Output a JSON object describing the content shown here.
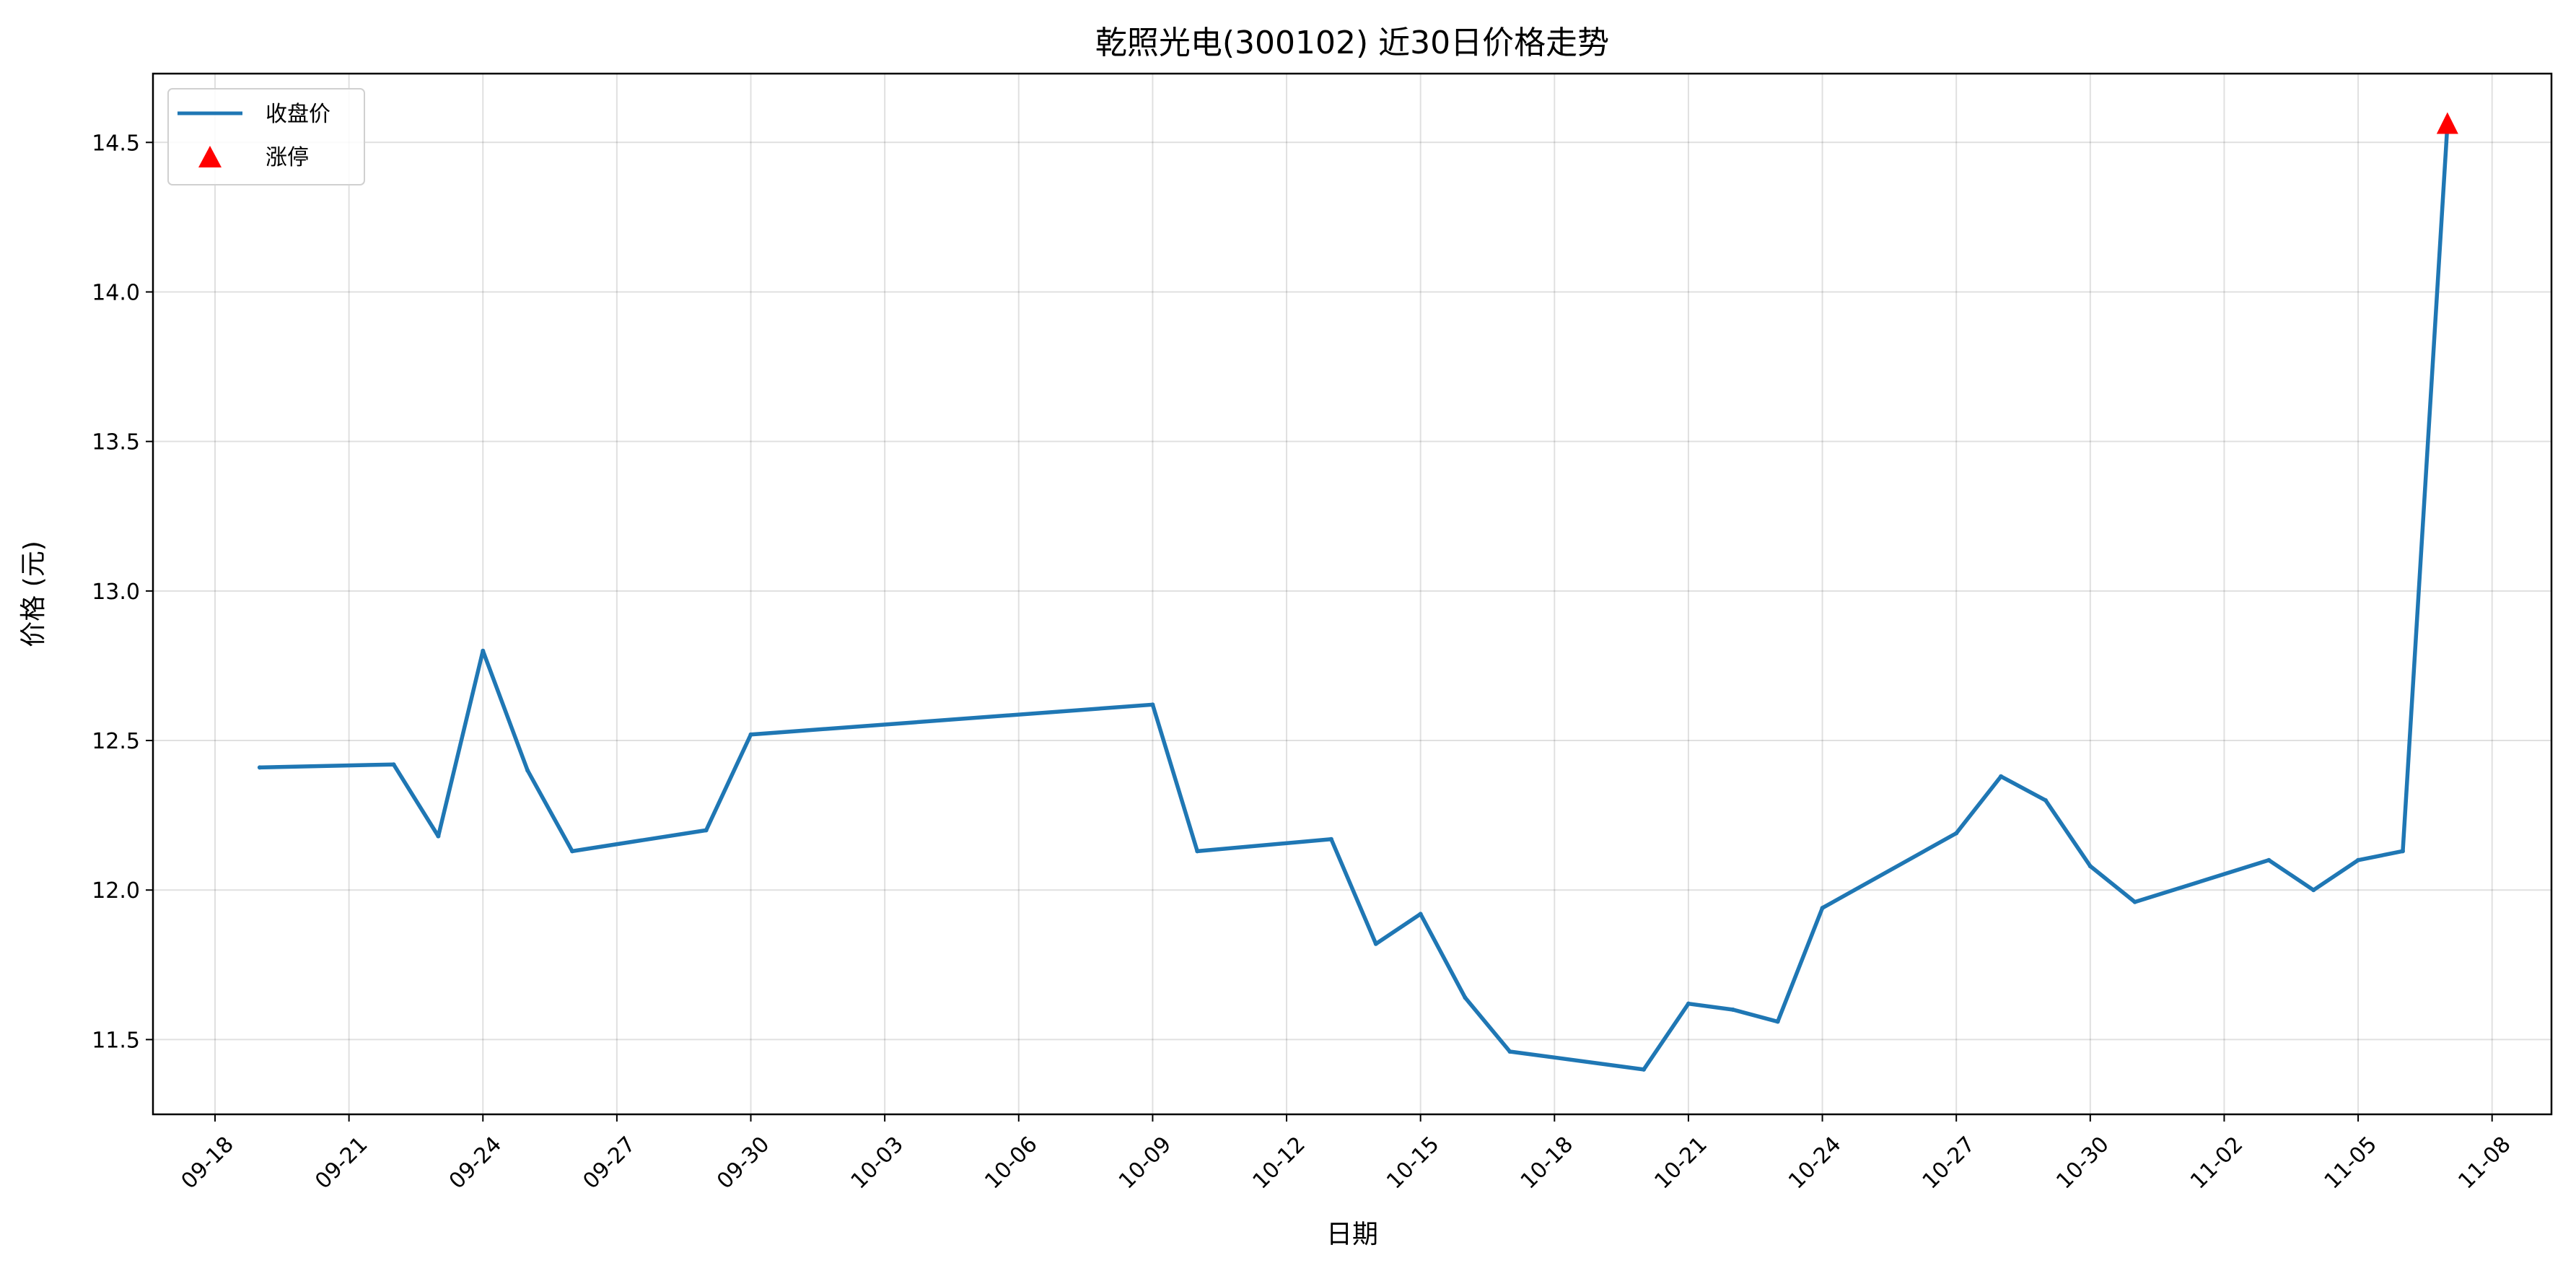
{
  "chart_data": {
    "type": "line",
    "title": "乾照光电(300102) 近30日价格走势",
    "xlabel": "日期",
    "ylabel": "价格 (元)",
    "x": [
      "09-19",
      "09-22",
      "09-23",
      "09-24",
      "09-25",
      "09-26",
      "09-29",
      "09-30",
      "10-09",
      "10-10",
      "10-13",
      "10-14",
      "10-15",
      "10-16",
      "10-17",
      "10-20",
      "10-21",
      "10-22",
      "10-23",
      "10-24",
      "10-27",
      "10-28",
      "10-29",
      "10-30",
      "10-31",
      "11-03",
      "11-04",
      "11-05",
      "11-06",
      "11-07"
    ],
    "series": [
      {
        "name": "收盘价",
        "type": "line",
        "color": "#1f77b4",
        "values": [
          12.41,
          12.42,
          12.18,
          12.8,
          12.4,
          12.13,
          12.2,
          12.52,
          12.62,
          12.13,
          12.17,
          11.82,
          11.92,
          11.64,
          11.46,
          11.4,
          11.62,
          11.6,
          11.56,
          11.94,
          12.19,
          12.38,
          12.3,
          12.08,
          11.96,
          12.1,
          12.0,
          12.1,
          12.13,
          14.56
        ]
      },
      {
        "name": "涨停",
        "type": "scatter",
        "marker": "triangle-up",
        "color": "#ff0000",
        "points": [
          {
            "x": "11-07",
            "y": 14.56
          }
        ]
      }
    ],
    "xticks": [
      "09-18",
      "09-21",
      "09-24",
      "09-27",
      "09-30",
      "10-03",
      "10-06",
      "10-09",
      "10-12",
      "10-15",
      "10-18",
      "10-21",
      "10-24",
      "10-27",
      "10-30",
      "11-02",
      "11-05",
      "11-08"
    ],
    "yticks": [
      11.5,
      12.0,
      12.5,
      13.0,
      13.5,
      14.0,
      14.5
    ],
    "xlim": [
      "09-16",
      "11-09"
    ],
    "ylim": [
      11.25,
      14.73
    ],
    "grid": true,
    "legend": "top-left"
  }
}
